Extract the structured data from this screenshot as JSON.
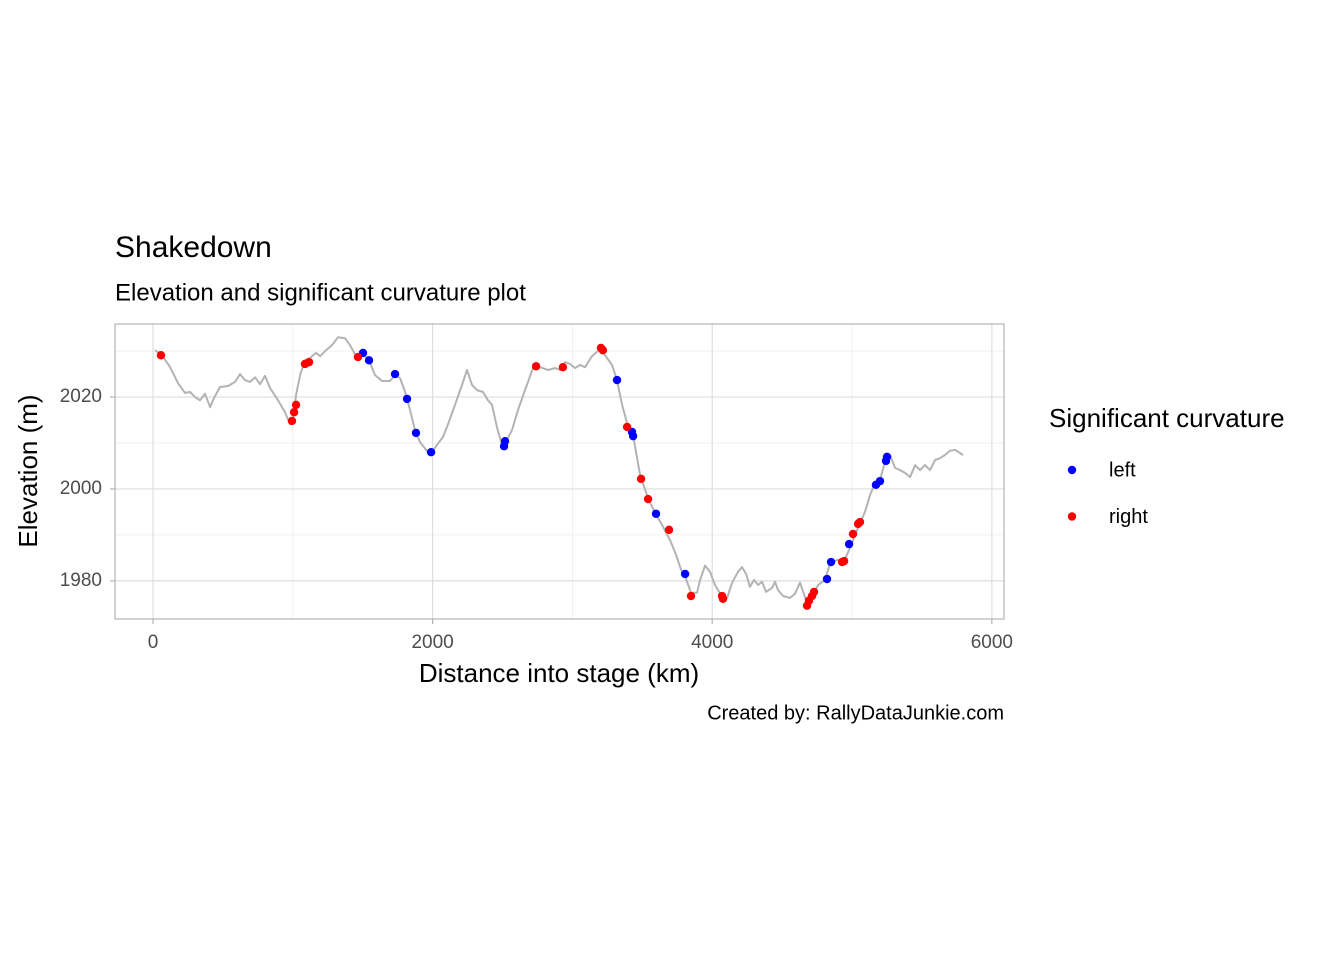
{
  "chart_data": {
    "type": "line",
    "title": "Shakedown",
    "subtitle": "Elevation and significant curvature plot",
    "caption": "Created by: RallyDataJunkie.com",
    "xlabel": "Distance into stage (km)",
    "ylabel": "Elevation (m)",
    "legend_title": "Significant curvature",
    "xlim": [
      -272,
      6087
    ],
    "ylim": [
      1971.7,
      2035.9
    ],
    "xticks": [
      0,
      2000,
      4000,
      6000
    ],
    "yticks": [
      1980,
      2000,
      2020
    ],
    "x_minor_grid": [
      1000,
      3000,
      5000
    ],
    "y_minor_grid": [
      1990,
      2010,
      2030
    ],
    "grid": true,
    "line": {
      "color": "#b3b3b3",
      "x": [
        14,
        64,
        122,
        179,
        229,
        265,
        300,
        336,
        372,
        408,
        436,
        479,
        536,
        587,
        622,
        658,
        694,
        730,
        765,
        801,
        837,
        894,
        944,
        980,
        1001,
        1023,
        1052,
        1087,
        1123,
        1166,
        1195,
        1237,
        1280,
        1323,
        1373,
        1409,
        1445,
        1495,
        1538,
        1588,
        1638,
        1695,
        1731,
        1767,
        1803,
        1838,
        1874,
        1910,
        1967,
        1996,
        2031,
        2074,
        2110,
        2160,
        2210,
        2246,
        2282,
        2318,
        2360,
        2396,
        2425,
        2461,
        2496,
        2532,
        2568,
        2611,
        2661,
        2718,
        2768,
        2825,
        2876,
        2911,
        2947,
        2983,
        3019,
        3054,
        3090,
        3140,
        3197,
        3233,
        3283,
        3319,
        3355,
        3398,
        3434,
        3484,
        3541,
        3591,
        3641,
        3698,
        3741,
        3777,
        3813,
        3848,
        3891,
        3913,
        3948,
        3984,
        4020,
        4070,
        4106,
        4142,
        4185,
        4213,
        4242,
        4270,
        4299,
        4328,
        4356,
        4385,
        4428,
        4449,
        4471,
        4506,
        4557,
        4592,
        4628,
        4657,
        4685,
        4721,
        4757,
        4807,
        4843,
        4900,
        4936,
        4986,
        5021,
        5057,
        5093,
        5129,
        5164,
        5200,
        5236,
        5272,
        5307,
        5343,
        5379,
        5415,
        5451,
        5486,
        5522,
        5558,
        5594,
        5630,
        5665,
        5701,
        5737,
        5794
      ],
      "y": [
        2030.2,
        2029.1,
        2026.5,
        2023.0,
        2020.9,
        2021.1,
        2020.0,
        2019.3,
        2020.7,
        2017.8,
        2019.8,
        2022.2,
        2022.4,
        2023.3,
        2025.0,
        2023.7,
        2023.3,
        2024.3,
        2022.8,
        2024.6,
        2022.0,
        2019.3,
        2016.7,
        2014.1,
        2015.0,
        2020.4,
        2024.8,
        2028.0,
        2028.5,
        2029.6,
        2028.9,
        2030.2,
        2031.3,
        2033.0,
        2032.8,
        2031.3,
        2029.3,
        2029.1,
        2028.5,
        2024.8,
        2023.5,
        2023.5,
        2024.8,
        2024.1,
        2021.1,
        2017.2,
        2012.8,
        2010.2,
        2008.0,
        2008.0,
        2009.6,
        2011.3,
        2014.1,
        2018.3,
        2022.6,
        2025.9,
        2022.6,
        2021.5,
        2021.1,
        2019.3,
        2018.3,
        2013.3,
        2009.6,
        2010.7,
        2012.8,
        2017.2,
        2021.5,
        2026.3,
        2026.5,
        2025.9,
        2026.3,
        2025.9,
        2027.6,
        2027.2,
        2026.3,
        2027.0,
        2026.5,
        2028.9,
        2030.4,
        2029.1,
        2027.0,
        2023.7,
        2018.3,
        2013.5,
        2011.7,
        2003.0,
        1998.0,
        1994.8,
        1992.2,
        1988.9,
        1985.7,
        1982.4,
        1980.4,
        1977.4,
        1977.4,
        1980.2,
        1983.3,
        1982.0,
        1979.1,
        1976.5,
        1976.3,
        1979.6,
        1982.0,
        1983.0,
        1981.5,
        1978.7,
        1980.2,
        1979.1,
        1979.8,
        1977.6,
        1978.5,
        1979.8,
        1978.0,
        1976.7,
        1976.3,
        1977.2,
        1979.6,
        1977.0,
        1974.6,
        1977.0,
        1979.1,
        1980.2,
        1983.9,
        1984.6,
        1983.9,
        1987.2,
        1990.0,
        1992.6,
        1995.0,
        1998.7,
        2001.3,
        2002.0,
        2005.9,
        2007.4,
        2004.6,
        2004.1,
        2003.5,
        2002.6,
        2005.2,
        2004.1,
        2005.2,
        2004.1,
        2006.3,
        2006.7,
        2007.4,
        2008.3,
        2008.5,
        2007.4
      ]
    },
    "series": [
      {
        "name": "left",
        "color": "#0000ff",
        "x": [
          1502,
          1545,
          1731,
          1817,
          1881,
          1989,
          2518,
          2511,
          3319,
          3426,
          3434,
          3598,
          3806,
          4821,
          4850,
          4979,
          5171,
          5200,
          5243,
          5250
        ],
        "y": [
          2029.6,
          2028.0,
          2025.0,
          2019.6,
          2012.2,
          2008.0,
          2010.4,
          2009.3,
          2023.7,
          2012.4,
          2011.5,
          1994.6,
          1981.5,
          1980.4,
          1984.1,
          1988.0,
          2000.9,
          2001.7,
          2006.1,
          2007.0
        ]
      },
      {
        "name": "right",
        "color": "#ff0000",
        "x": [
          57,
          994,
          1009,
          1023,
          1087,
          1116,
          1466,
          2740,
          2932,
          3204,
          3218,
          3391,
          3491,
          3541,
          3691,
          3848,
          4070,
          4077,
          4678,
          4692,
          4714,
          4728,
          4929,
          4943,
          5007,
          5043,
          5057
        ],
        "y": [
          2029.1,
          2014.8,
          2016.7,
          2018.3,
          2027.2,
          2027.6,
          2028.7,
          2026.7,
          2026.5,
          2030.7,
          2030.2,
          2013.5,
          2002.2,
          1997.8,
          1991.1,
          1976.7,
          1976.7,
          1976.1,
          1974.6,
          1975.7,
          1976.7,
          1977.6,
          1984.1,
          1984.3,
          1990.2,
          1992.4,
          1992.8
        ]
      }
    ]
  }
}
